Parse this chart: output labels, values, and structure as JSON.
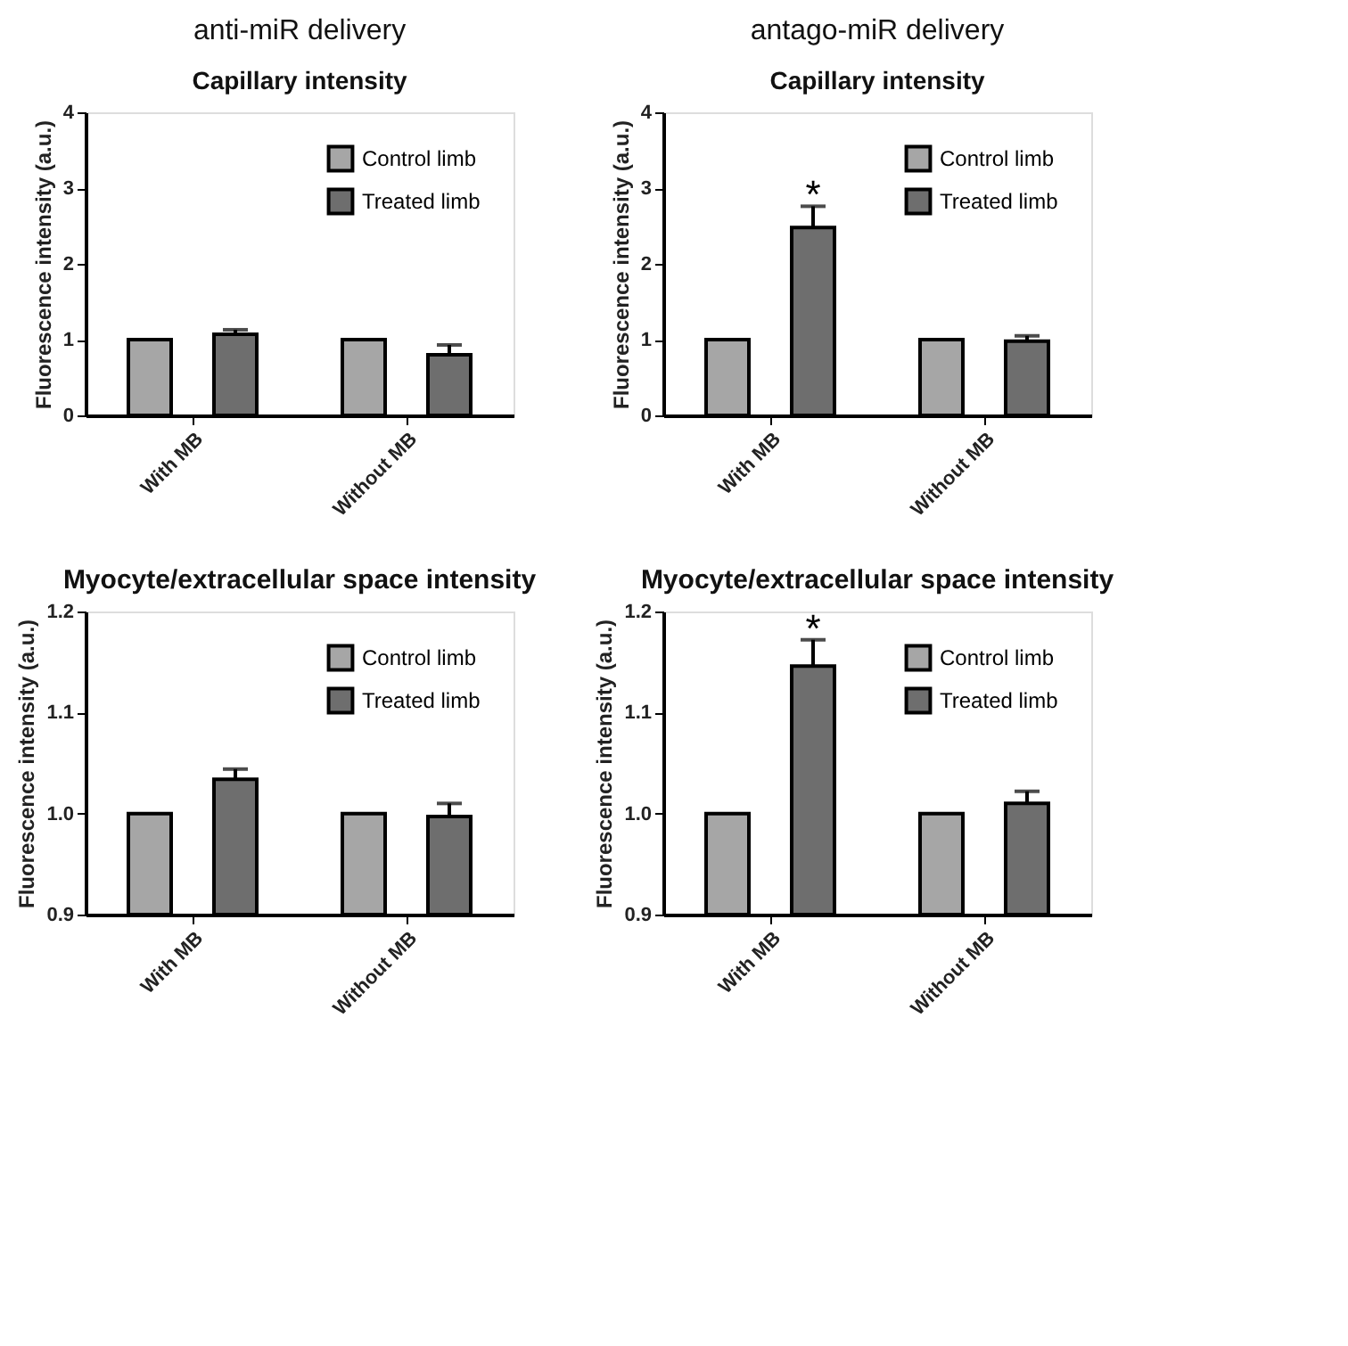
{
  "chart_data": [
    {
      "type": "bar",
      "title": "anti-miR delivery",
      "subtitle": "Capillary intensity",
      "ylabel": "Fluorescence intensity (a.u.)",
      "categories": [
        "With MB",
        "Without MB"
      ],
      "ylim": [
        0,
        4
      ],
      "yticks": [
        0,
        1,
        2,
        3,
        4
      ],
      "legend": "top right",
      "series": [
        {
          "name": "Control limb",
          "color": "#a6a6a6",
          "values": [
            1,
            1
          ]
        },
        {
          "name": "Treated limb",
          "color": "#6e6e6e",
          "values": [
            1.07,
            0.8
          ],
          "errors": [
            0.06,
            0.13
          ]
        }
      ]
    },
    {
      "type": "bar",
      "title": "antago-miR delivery",
      "subtitle": "Capillary intensity",
      "ylabel": "Fluorescence intensity (a.u.)",
      "categories": [
        "With MB",
        "Without MB"
      ],
      "ylim": [
        0,
        4
      ],
      "yticks": [
        0,
        1,
        2,
        3,
        4
      ],
      "legend": "top right",
      "series": [
        {
          "name": "Control limb",
          "color": "#a6a6a6",
          "values": [
            1,
            1
          ]
        },
        {
          "name": "Treated limb",
          "color": "#6e6e6e",
          "values": [
            2.48,
            0.98
          ],
          "errors": [
            0.28,
            0.07
          ]
        }
      ],
      "annotations": [
        "*"
      ]
    },
    {
      "type": "bar",
      "title": "Myocyte/extracellular space intensity",
      "ylabel": "Fluorescence intensity (a.u.)",
      "categories": [
        "With MB",
        "Without MB"
      ],
      "ylim": [
        0.9,
        1.2
      ],
      "yticks": [
        0.9,
        {
          "value": 1.0,
          "label": "1.0"
        },
        1.1,
        1.2
      ],
      "legend": "top right",
      "series": [
        {
          "name": "Control limb",
          "color": "#a6a6a6",
          "values": [
            1.0,
            1.0
          ]
        },
        {
          "name": "Treated limb",
          "color": "#6e6e6e",
          "values": [
            1.034,
            0.997
          ],
          "errors": [
            0.01,
            0.013
          ]
        }
      ]
    },
    {
      "type": "bar",
      "title": "Myocyte/extracellular space intensity",
      "ylabel": "Fluorescence intensity (a.u.)",
      "categories": [
        "With MB",
        "Without MB"
      ],
      "ylim": [
        0.9,
        1.2
      ],
      "yticks": [
        0.9,
        {
          "value": 1.0,
          "label": "1.0"
        },
        1.1,
        1.2
      ],
      "legend": "top right",
      "series": [
        {
          "name": "Control limb",
          "color": "#a6a6a6",
          "values": [
            1.0,
            1.0
          ]
        },
        {
          "name": "Treated limb",
          "color": "#6e6e6e",
          "values": [
            1.146,
            1.01
          ],
          "errors": [
            0.026,
            0.012
          ]
        }
      ],
      "annotations": [
        "*"
      ]
    }
  ]
}
